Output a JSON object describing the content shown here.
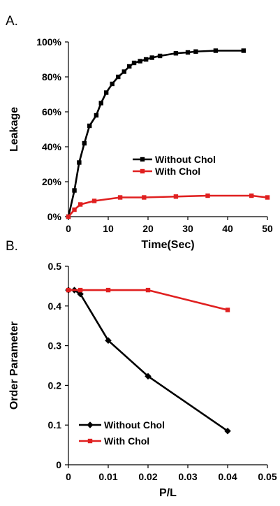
{
  "chart_data": [
    {
      "panel_label": "A.",
      "type": "line",
      "xlabel": "Time(Sec)",
      "ylabel": "Leakage",
      "xlim": [
        0,
        50
      ],
      "ylim": [
        0,
        100
      ],
      "y_format": "percent",
      "x_ticks": [
        0,
        10,
        20,
        30,
        40,
        50
      ],
      "y_ticks": [
        0,
        20,
        40,
        60,
        80,
        100
      ],
      "legend_position": "center-right",
      "series": [
        {
          "name": "Without Chol",
          "color": "#000000",
          "marker": "square",
          "x": [
            0,
            1.5,
            2.7,
            4,
            5.3,
            7,
            8.2,
            9.5,
            11,
            12.5,
            14,
            15.3,
            16.5,
            18,
            19.5,
            21,
            23,
            27,
            30,
            32,
            37,
            44
          ],
          "y": [
            0,
            15,
            31,
            42,
            52,
            58,
            65,
            71,
            76,
            80,
            83,
            86,
            88,
            89,
            90,
            91,
            92,
            93.5,
            94,
            94.5,
            95,
            95
          ]
        },
        {
          "name": "With Chol",
          "color": "#e02020",
          "marker": "square",
          "x": [
            0,
            1.5,
            3,
            6.5,
            13,
            19,
            27,
            35,
            46,
            50
          ],
          "y": [
            0,
            4,
            7,
            9,
            11,
            11,
            11.5,
            12,
            12,
            11
          ]
        }
      ]
    },
    {
      "panel_label": "B.",
      "type": "line",
      "xlabel": "P/L",
      "ylabel": "Order Parameter",
      "xlim": [
        0,
        0.05
      ],
      "ylim": [
        0,
        0.5
      ],
      "x_ticks": [
        0,
        0.01,
        0.02,
        0.03,
        0.04,
        0.05
      ],
      "x_tick_labels": [
        "0",
        "0.01",
        "0.02",
        "0.03",
        "0.04",
        "0.05"
      ],
      "y_ticks": [
        0,
        0.1,
        0.2,
        0.3,
        0.4,
        0.5
      ],
      "y_tick_labels": [
        "0",
        "0.1",
        "0.2",
        "0.3",
        "0.4",
        "0.5"
      ],
      "legend_position": "bottom-left",
      "series": [
        {
          "name": "Without Chol",
          "color": "#000000",
          "marker": "diamond",
          "x": [
            0,
            0.0015,
            0.003,
            0.01,
            0.02,
            0.04
          ],
          "y": [
            0.44,
            0.44,
            0.43,
            0.313,
            0.223,
            0.085
          ]
        },
        {
          "name": "With Chol",
          "color": "#e02020",
          "marker": "square",
          "x": [
            0,
            0.003,
            0.01,
            0.02,
            0.04
          ],
          "y": [
            0.44,
            0.44,
            0.44,
            0.44,
            0.39
          ]
        }
      ]
    }
  ]
}
